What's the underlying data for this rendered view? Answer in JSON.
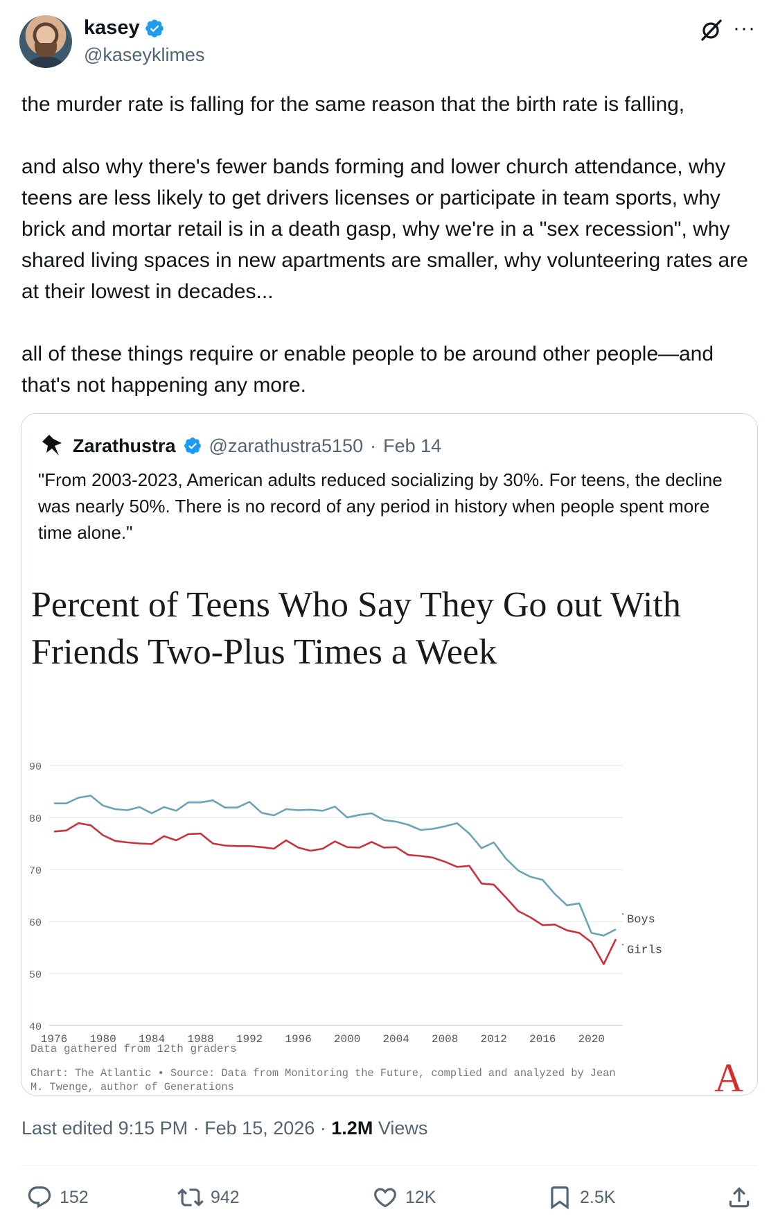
{
  "tweet": {
    "author_name": "kasey",
    "author_handle": "@kaseyklimes",
    "paragraphs": [
      "the murder rate is falling for the same reason that the birth rate is falling,",
      "and also why there's fewer bands forming and lower church attendance, why teens are less likely to get drivers licenses or participate in team sports, why brick and mortar retail is in a death gasp, why we're in a \"sex recession\",  why shared living spaces in new apartments are smaller, why volunteering rates are at their lowest in decades...",
      "all of these things require or enable people to be around other people—and that's not happening any more."
    ],
    "meta_prefix": "Last edited 9:15 PM · Feb 15, 2026 · ",
    "views_count": "1.2M",
    "views_label": " Views"
  },
  "quote": {
    "author_name": "Zarathustra",
    "author_handle": "@zarathustra5150",
    "separator": "·",
    "date": "Feb 14",
    "text": "\"From 2003-2023, American adults reduced socializing by 30%. For teens, the decline was nearly 50%. There is no record of any period in history when people spent more time alone.\""
  },
  "actions": {
    "replies": "152",
    "reposts": "942",
    "likes": "12K",
    "bookmarks": "2.5K"
  },
  "icons": [
    "verified-badge-icon",
    "grok-icon",
    "more-icon",
    "reply-icon",
    "repost-icon",
    "like-icon",
    "bookmark-icon",
    "share-icon",
    "atlantic-logo-icon"
  ],
  "colors": {
    "accent": "#1d9bf0",
    "boys": "#6aa3b4",
    "girls": "#c8323c",
    "muted": "#536471"
  },
  "chart_data": {
    "type": "line",
    "title_line1": "Percent of Teens Who Say They Go out With",
    "title_line2": "Friends Two-Plus Times a Week",
    "x": [
      1976,
      1977,
      1978,
      1979,
      1980,
      1981,
      1982,
      1983,
      1984,
      1985,
      1986,
      1987,
      1988,
      1989,
      1990,
      1991,
      1992,
      1993,
      1994,
      1995,
      1996,
      1997,
      1998,
      1999,
      2000,
      2001,
      2002,
      2003,
      2004,
      2005,
      2006,
      2007,
      2008,
      2009,
      2010,
      2011,
      2012,
      2013,
      2014,
      2015,
      2016,
      2017,
      2018,
      2019,
      2020,
      2021,
      2022
    ],
    "series": [
      {
        "name": "Boys",
        "values": [
          82.7,
          82.7,
          83.8,
          84.2,
          82.3,
          81.6,
          81.4,
          82.0,
          80.8,
          82.0,
          81.3,
          82.9,
          82.9,
          83.3,
          81.9,
          81.9,
          83.0,
          80.9,
          80.4,
          81.6,
          81.4,
          81.5,
          81.3,
          82.1,
          80.0,
          80.5,
          80.8,
          79.5,
          79.2,
          78.6,
          77.6,
          77.8,
          78.3,
          78.9,
          76.9,
          74.1,
          75.2,
          72.1,
          69.8,
          68.6,
          68.0,
          65.3,
          63.1,
          63.5,
          57.8,
          57.3,
          58.5
        ]
      },
      {
        "name": "Girls",
        "values": [
          77.3,
          77.5,
          78.9,
          78.5,
          76.6,
          75.5,
          75.2,
          75.0,
          74.9,
          76.4,
          75.6,
          76.8,
          76.9,
          75.0,
          74.6,
          74.5,
          74.5,
          74.3,
          74.0,
          75.6,
          74.2,
          73.6,
          74.0,
          75.4,
          74.3,
          74.2,
          75.3,
          74.2,
          74.3,
          72.8,
          72.6,
          72.3,
          71.5,
          70.5,
          70.7,
          67.3,
          67.1,
          64.6,
          62.0,
          60.8,
          59.3,
          59.4,
          58.3,
          57.8,
          56.0,
          51.8,
          56.6
        ]
      }
    ],
    "x_ticks": [
      1976,
      1980,
      1984,
      1988,
      1992,
      1996,
      2000,
      2004,
      2008,
      2012,
      2016,
      2020
    ],
    "y_ticks": [
      40,
      50,
      60,
      70,
      80,
      90
    ],
    "ylim": [
      40,
      90
    ],
    "xlabel": "",
    "ylabel": "",
    "note": "Data gathered from 12th graders",
    "source_line1": "Chart: The Atlantic • Source: Data from Monitoring the Future, complied and analyzed by Jean",
    "source_line2": "M. Twenge, author of Generations",
    "logo_text": "A"
  }
}
